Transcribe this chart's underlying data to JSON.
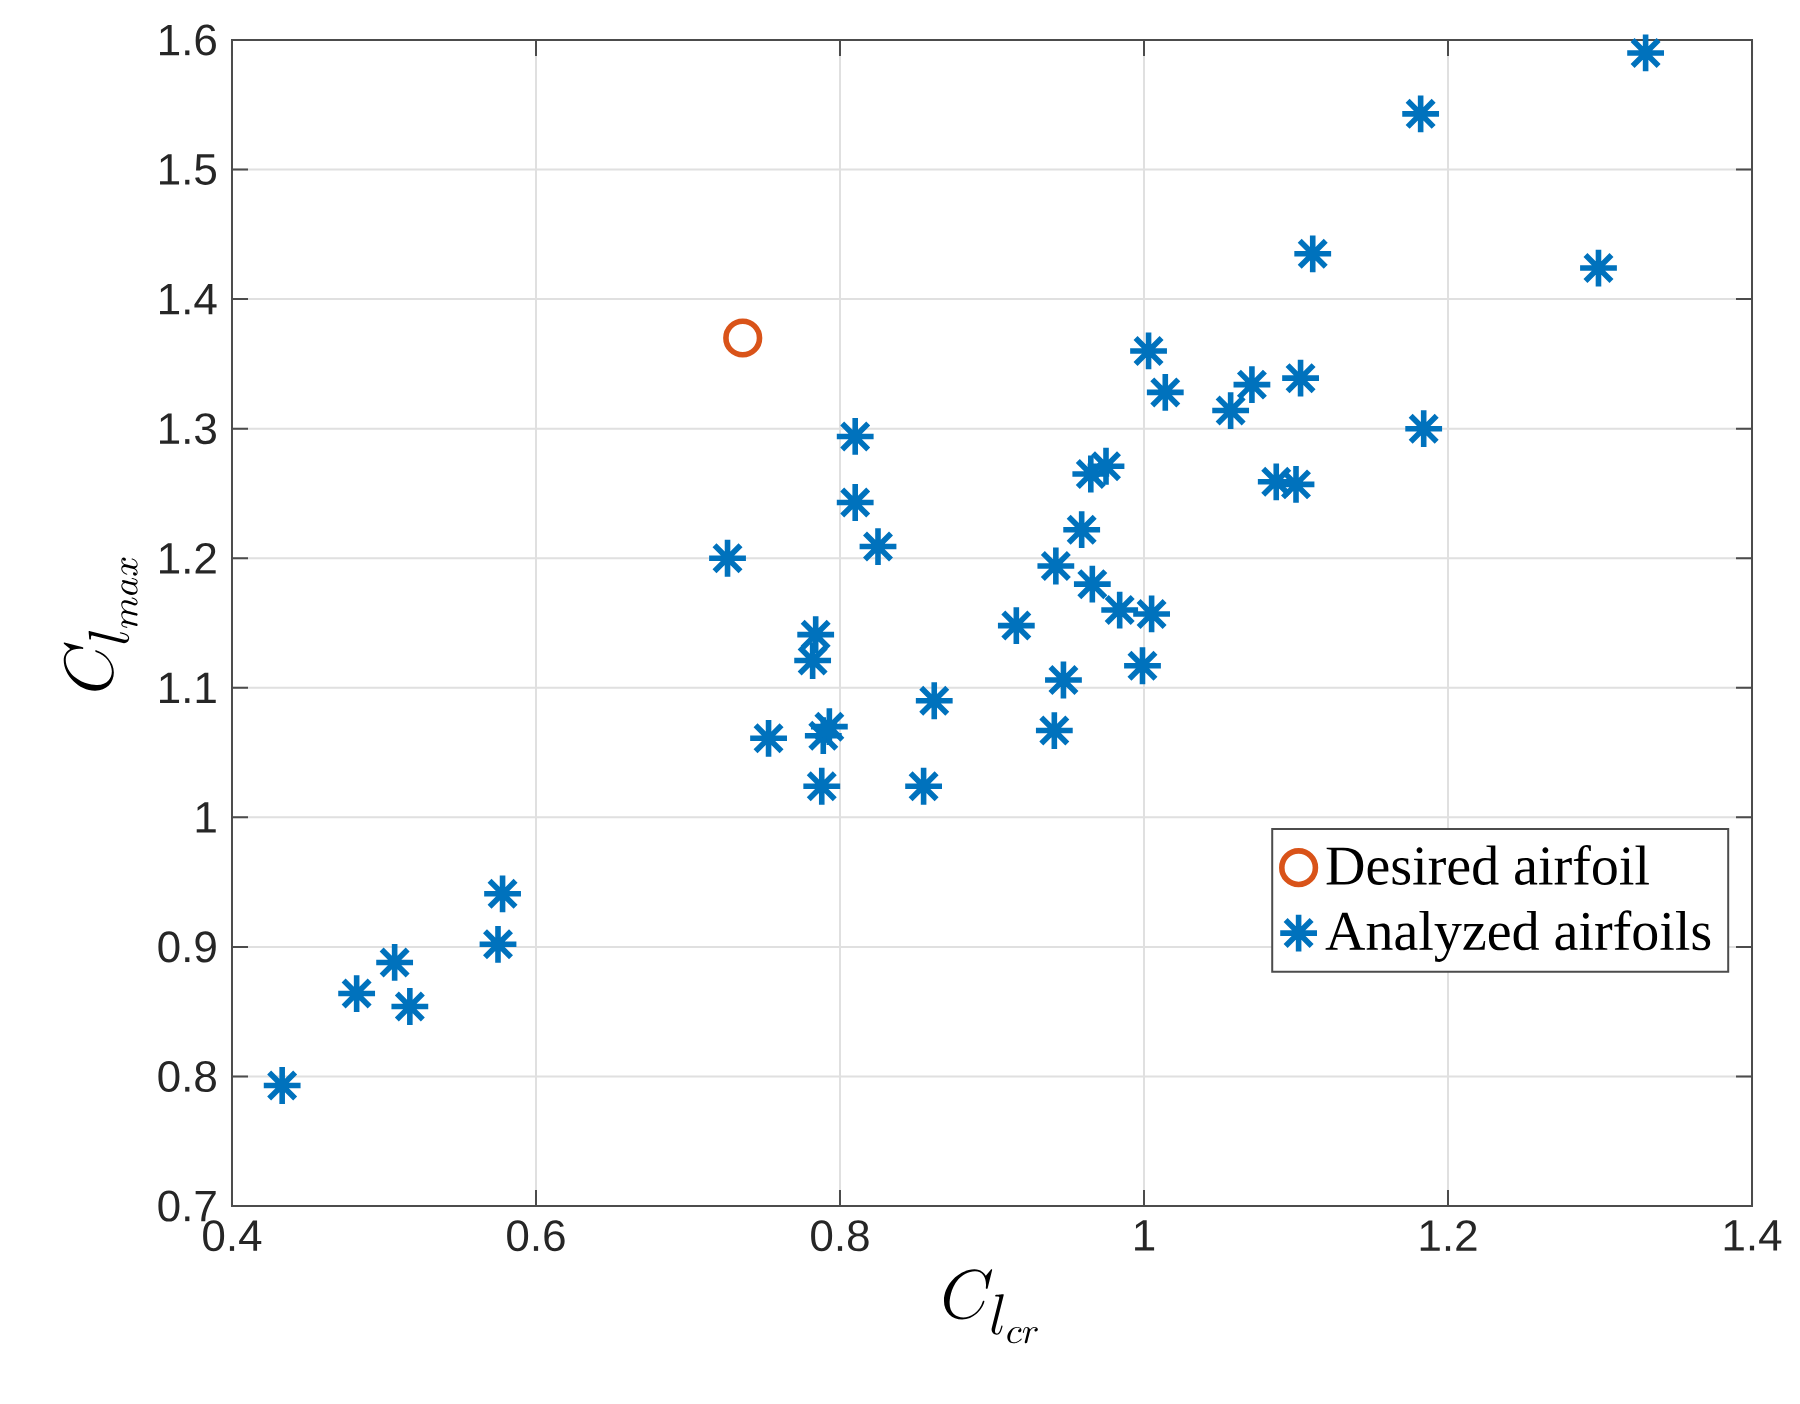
{
  "chart_data": {
    "type": "scatter",
    "xlabel": "C_{l_{cr}}",
    "ylabel": "C_{l_{max}}",
    "xlim": [
      0.4,
      1.4
    ],
    "ylim": [
      0.7,
      1.6
    ],
    "xticks": [
      0.4,
      0.6,
      0.8,
      1,
      1.2,
      1.4
    ],
    "yticks": [
      0.7,
      0.8,
      0.9,
      1,
      1.1,
      1.2,
      1.3,
      1.4,
      1.5,
      1.6
    ],
    "grid": true,
    "legend": "bottom right",
    "series": [
      {
        "name": "Desired airfoil",
        "color": "#d95319",
        "marker": "circle",
        "x": [
          0.736
        ],
        "values": [
          1.37
        ]
      },
      {
        "name": "Analyzed airfoils",
        "color": "#0072bd",
        "marker": "cross",
        "x": [
          0.433,
          0.482,
          0.507,
          0.517,
          0.575,
          0.578,
          0.726,
          0.753,
          0.782,
          0.784,
          0.788,
          0.789,
          0.793,
          0.81,
          0.81,
          0.825,
          0.862,
          0.855,
          0.916,
          0.942,
          0.959,
          0.965,
          0.975,
          0.966,
          0.984,
          1.005,
          0.999,
          0.947,
          0.941,
          1.003,
          1.014,
          1.057,
          1.071,
          1.103,
          1.087,
          1.1,
          1.184,
          1.111,
          1.182,
          1.33,
          1.299
        ],
        "values": [
          0.793,
          0.864,
          0.888,
          0.854,
          0.902,
          0.941,
          1.2,
          1.061,
          1.121,
          1.141,
          1.024,
          1.063,
          1.07,
          1.294,
          1.243,
          1.209,
          1.09,
          1.024,
          1.148,
          1.194,
          1.222,
          1.265,
          1.271,
          1.18,
          1.16,
          1.157,
          1.117,
          1.106,
          1.067,
          1.36,
          1.328,
          1.314,
          1.334,
          1.339,
          1.259,
          1.257,
          1.3,
          1.435,
          1.543,
          1.59,
          1.424
        ]
      }
    ]
  }
}
